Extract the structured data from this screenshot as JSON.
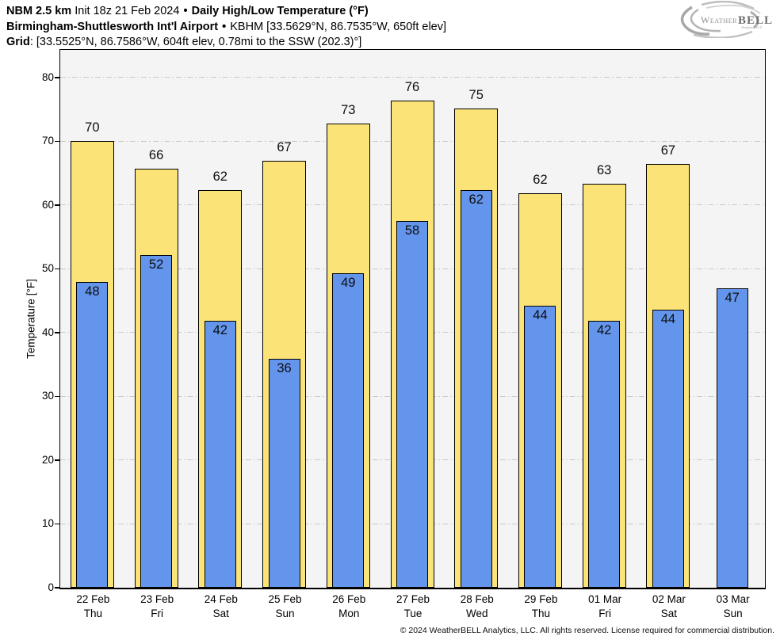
{
  "header": {
    "line1": {
      "model": "NBM 2.5 km",
      "init": "Init 18z 21 Feb 2024",
      "sep": "•",
      "product": "Daily High/Low Temperature (°F)"
    },
    "line2": {
      "station": "Birmingham-Shuttlesworth Int'l Airport",
      "sep": "•",
      "details": "KBHM [33.5629°N, 86.7535°W, 650ft elev]"
    },
    "line3": {
      "label": "Grid",
      "value": ": [33.5525°N, 86.7586°W, 604ft elev, 0.78mi to the SSW (202.3)°]"
    }
  },
  "logo": {
    "weather": "Weather",
    "bell": "BELL",
    "sub": "Analytics LLC"
  },
  "chart_data": {
    "type": "bar",
    "title": "Daily High/Low Temperature (°F)",
    "ylabel": "Temperature [°F]",
    "ylim": [
      0,
      84.2
    ],
    "yticks": [
      0,
      10,
      20,
      30,
      40,
      50,
      60,
      70,
      80
    ],
    "grid": "horizontal dash-dot",
    "plot_bg": "#f4f4f4",
    "legend": "none",
    "categories": [
      {
        "date": "22 Feb",
        "day": "Thu"
      },
      {
        "date": "23 Feb",
        "day": "Fri"
      },
      {
        "date": "24 Feb",
        "day": "Sat"
      },
      {
        "date": "25 Feb",
        "day": "Sun"
      },
      {
        "date": "26 Feb",
        "day": "Mon"
      },
      {
        "date": "27 Feb",
        "day": "Tue"
      },
      {
        "date": "28 Feb",
        "day": "Wed"
      },
      {
        "date": "29 Feb",
        "day": "Thu"
      },
      {
        "date": "01 Mar",
        "day": "Fri"
      },
      {
        "date": "02 Mar",
        "day": "Sat"
      },
      {
        "date": "03 Mar",
        "day": "Sun"
      }
    ],
    "series": [
      {
        "name": "High",
        "color": "#fce378",
        "edge_color": "#000000",
        "labels": [
          70,
          66,
          62,
          67,
          73,
          76,
          75,
          62,
          63,
          67,
          null
        ],
        "values": [
          70.1,
          65.7,
          62.3,
          66.9,
          72.8,
          76.4,
          75.1,
          61.8,
          63.3,
          66.5,
          null
        ]
      },
      {
        "name": "Low",
        "color": "#6495ed",
        "edge_color": "#000000",
        "labels": [
          48,
          52,
          42,
          36,
          49,
          58,
          62,
          44,
          42,
          44,
          47
        ],
        "values": [
          47.9,
          52.2,
          41.8,
          35.9,
          49.3,
          57.5,
          62.3,
          44.2,
          41.9,
          43.6,
          46.9
        ]
      }
    ]
  },
  "footer": {
    "copyright": "© 2024 WeatherBELL Analytics, LLC. All rights reserved. License required for commercial distribution."
  }
}
